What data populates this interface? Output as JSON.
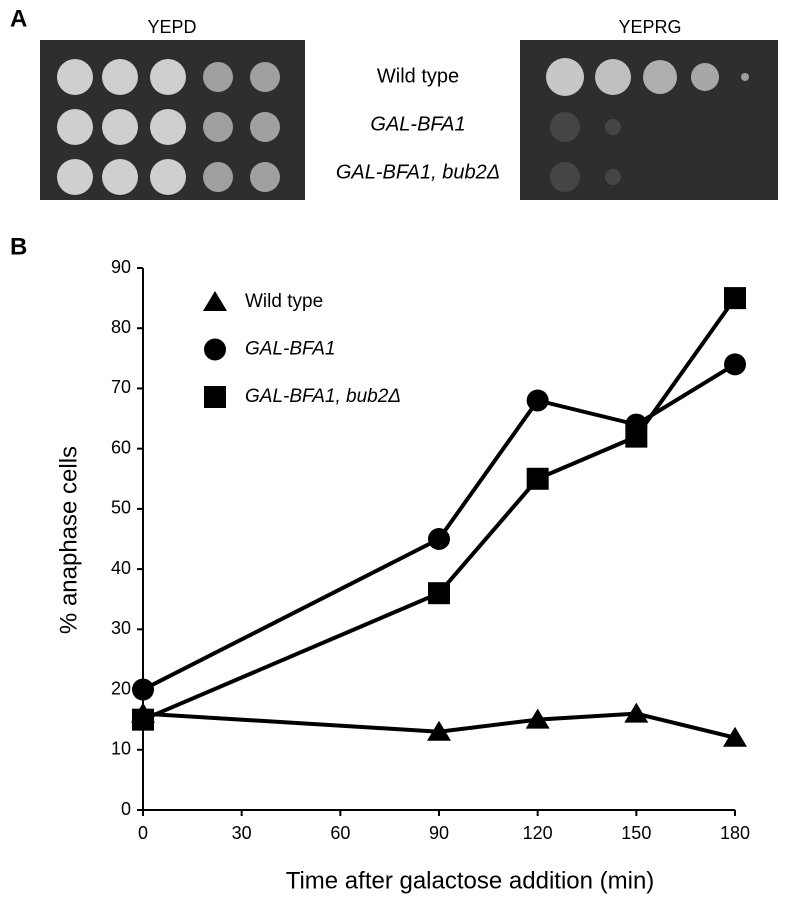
{
  "panel_a": {
    "label": "A",
    "plates": [
      "YEPD",
      "YEPRG"
    ],
    "strains": [
      "Wild type",
      "GAL-BFA1",
      "GAL-BFA1, bub2Δ"
    ]
  },
  "chart_data": {
    "type": "line",
    "panel_label": "B",
    "x_label": "Time after galactose addition (min)",
    "y_label": "% anaphase cells",
    "x": [
      0,
      90,
      120,
      150,
      180
    ],
    "series": [
      {
        "name": "Wild type",
        "color": "#000000",
        "marker": "triangle",
        "values": [
          16,
          13,
          15,
          16,
          12
        ]
      },
      {
        "name": "GAL-BFA1",
        "color": "#000000",
        "marker": "circle",
        "values": [
          20,
          45,
          68,
          64,
          74
        ]
      },
      {
        "name": "GAL-BFA1, bub2Δ",
        "color": "#000000",
        "marker": "square",
        "values": [
          15,
          36,
          55,
          62,
          85
        ]
      }
    ],
    "xlim": [
      0,
      180
    ],
    "xticks": [
      0,
      30,
      60,
      90,
      120,
      150,
      180
    ],
    "ylim": [
      0,
      90
    ],
    "yticks": [
      0,
      10,
      20,
      30,
      40,
      50,
      60,
      70,
      80,
      90
    ],
    "grid": false,
    "legend": "upper left"
  }
}
